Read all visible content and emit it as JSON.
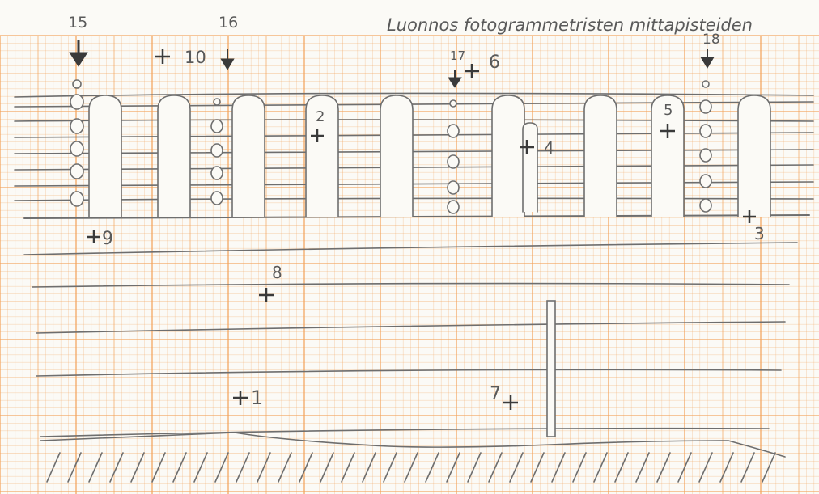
{
  "sheet": {
    "heading": "Luonnos fotogrammetristen mittapisteiden",
    "paper_color": "#fbfaf6",
    "grid_color": "#f2a25b",
    "pencil_color": "#6e6e6e",
    "ink_color": "#3a3a3a"
  },
  "column_labels": [
    "15",
    "16",
    "17",
    "18"
  ],
  "points": [
    "1",
    "2",
    "3",
    "4",
    "5",
    "6",
    "7",
    "8",
    "9",
    "10"
  ]
}
